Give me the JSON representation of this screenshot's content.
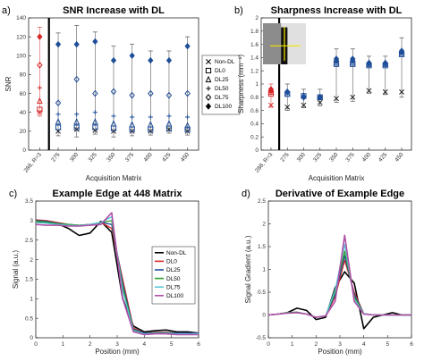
{
  "chart_data": [
    {
      "id": "a",
      "panel_label": "a)",
      "type": "scatter",
      "title": "SNR Increase with DL",
      "xlabel": "Acquisition Matrix",
      "ylabel": "SNR",
      "categories": [
        "288, R=3",
        "275",
        "300",
        "325",
        "350",
        "375",
        "400",
        "425",
        "450"
      ],
      "ylim": [
        0,
        140
      ],
      "yticks": [
        0,
        20,
        40,
        60,
        80,
        100,
        120,
        140
      ],
      "divider_after_index": 0,
      "legend": {
        "placement": "right",
        "entries": [
          "Non-DL",
          "DL0",
          "DL25",
          "DL50",
          "DL75",
          "DL100"
        ]
      },
      "series": [
        {
          "name": "Non-DL",
          "marker": "x",
          "values": [
            40,
            20,
            22,
            21,
            20,
            20,
            20,
            22,
            20
          ]
        },
        {
          "name": "DL0",
          "marker": "square",
          "values": [
            43,
            24,
            24,
            24,
            23,
            22,
            22,
            23,
            22
          ]
        },
        {
          "name": "DL25",
          "marker": "triangle",
          "values": [
            52,
            30,
            30,
            30,
            28,
            27,
            27,
            28,
            26
          ]
        },
        {
          "name": "DL50",
          "marker": "plus",
          "values": [
            66,
            38,
            38,
            40,
            36,
            35,
            35,
            36,
            35
          ]
        },
        {
          "name": "DL75",
          "marker": "diamond-open",
          "values": [
            90,
            50,
            75,
            60,
            62,
            58,
            60,
            58,
            60
          ]
        },
        {
          "name": "DL100",
          "marker": "diamond",
          "values": [
            120,
            112,
            112,
            115,
            95,
            100,
            95,
            95,
            110
          ]
        }
      ],
      "error": [
        10,
        12,
        20,
        10,
        15,
        12,
        10,
        10,
        10
      ],
      "colors": {
        "first_point": "#d62728",
        "rest": "#1f4e99"
      }
    },
    {
      "id": "b",
      "panel_label": "b)",
      "type": "scatter",
      "title": "Sharpness Increase with DL",
      "xlabel": "Acquisition Matrix",
      "ylabel": "Sharpness (mm⁻¹)",
      "categories": [
        "288, R=3",
        "275",
        "300",
        "325",
        "350",
        "375",
        "400",
        "425",
        "450"
      ],
      "ylim": [
        0,
        2
      ],
      "yticks": [
        0,
        0.2,
        0.4,
        0.6,
        0.8,
        1,
        1.2,
        1.4,
        1.6,
        1.8,
        2
      ],
      "divider_after_index": 0,
      "series": [
        {
          "name": "Non-DL",
          "values": [
            0.68,
            0.65,
            0.68,
            0.72,
            0.78,
            0.8,
            0.9,
            0.88,
            0.88
          ]
        },
        {
          "name": "DL0",
          "values": [
            0.85,
            0.85,
            0.82,
            0.8,
            1.3,
            1.3,
            1.28,
            1.28,
            1.45
          ]
        },
        {
          "name": "DL25",
          "values": [
            0.88,
            0.85,
            0.82,
            0.8,
            1.32,
            1.32,
            1.3,
            1.3,
            1.45
          ]
        },
        {
          "name": "DL50",
          "values": [
            0.9,
            0.87,
            0.82,
            0.8,
            1.35,
            1.35,
            1.32,
            1.32,
            1.48
          ]
        },
        {
          "name": "DL75",
          "values": [
            0.9,
            0.88,
            0.8,
            0.8,
            1.35,
            1.35,
            1.3,
            1.3,
            1.48
          ]
        },
        {
          "name": "DL100",
          "values": [
            0.92,
            0.88,
            0.8,
            0.8,
            1.38,
            1.38,
            1.32,
            1.32,
            1.5
          ]
        }
      ],
      "error": [
        0.08,
        0.12,
        0.1,
        0.12,
        0.15,
        0.15,
        0.1,
        0.1,
        0.2
      ],
      "inset": "image with yellow crosshair"
    },
    {
      "id": "c",
      "panel_label": "c)",
      "type": "line",
      "title": "Example Edge at 448 Matrix",
      "xlabel": "Position (mm)",
      "ylabel": "Signal (a.u.)",
      "xlim": [
        0,
        6
      ],
      "ylim": [
        0,
        3.5
      ],
      "xticks": [
        0,
        1,
        2,
        3,
        4,
        5,
        6
      ],
      "yticks": [
        0,
        0.5,
        1,
        1.5,
        2,
        2.5,
        3,
        3.5
      ],
      "legend": {
        "placement": "right",
        "entries": [
          "Non-DL",
          "DL0",
          "DL25",
          "DL50",
          "DL75",
          "DL100"
        ]
      },
      "x": [
        0,
        0.4,
        0.8,
        1.2,
        1.6,
        2.0,
        2.4,
        2.8,
        3.2,
        3.6,
        4.0,
        4.4,
        4.8,
        5.2,
        5.6,
        6.0
      ],
      "series": [
        {
          "name": "Non-DL",
          "color": "#000000",
          "values": [
            2.95,
            2.95,
            2.92,
            2.8,
            2.62,
            2.68,
            2.98,
            2.7,
            1.0,
            0.3,
            0.15,
            0.18,
            0.2,
            0.15,
            0.15,
            0.12
          ]
        },
        {
          "name": "DL0",
          "color": "#d62728",
          "values": [
            3.02,
            3.0,
            2.95,
            2.9,
            2.88,
            2.9,
            2.95,
            2.8,
            1.5,
            0.25,
            0.12,
            0.14,
            0.14,
            0.12,
            0.12,
            0.12
          ]
        },
        {
          "name": "DL25",
          "color": "#1f4e99",
          "values": [
            3.0,
            2.98,
            2.93,
            2.9,
            2.88,
            2.9,
            2.95,
            2.9,
            1.4,
            0.22,
            0.12,
            0.13,
            0.13,
            0.12,
            0.12,
            0.12
          ]
        },
        {
          "name": "DL50",
          "color": "#2ca02c",
          "values": [
            2.98,
            2.96,
            2.92,
            2.9,
            2.88,
            2.9,
            2.95,
            3.0,
            1.3,
            0.2,
            0.1,
            0.12,
            0.12,
            0.1,
            0.1,
            0.1
          ]
        },
        {
          "name": "DL75",
          "color": "#5bc8d8",
          "values": [
            2.95,
            2.93,
            2.9,
            2.88,
            2.87,
            2.9,
            2.95,
            3.1,
            1.2,
            0.18,
            0.1,
            0.11,
            0.11,
            0.1,
            0.1,
            0.1
          ]
        },
        {
          "name": "DL100",
          "color": "#b04fa8",
          "values": [
            2.9,
            2.88,
            2.88,
            2.86,
            2.86,
            2.88,
            2.9,
            3.2,
            1.0,
            0.15,
            0.08,
            0.1,
            0.1,
            0.08,
            0.08,
            0.08
          ]
        }
      ]
    },
    {
      "id": "d",
      "panel_label": "d)",
      "type": "line",
      "title": "Derivative of Example Edge",
      "xlabel": "Position (mm)",
      "ylabel": "Signal Gradient (a.u.)",
      "xlim": [
        0,
        6
      ],
      "ylim": [
        -0.5,
        2.5
      ],
      "xticks": [
        0,
        1,
        2,
        3,
        4,
        5,
        6
      ],
      "yticks": [
        -0.5,
        0,
        0.5,
        1,
        1.5,
        2,
        2.5
      ],
      "x": [
        0,
        0.4,
        0.8,
        1.2,
        1.6,
        2.0,
        2.4,
        2.8,
        3.2,
        3.6,
        4.0,
        4.4,
        4.8,
        5.2,
        5.6,
        6.0
      ],
      "series": [
        {
          "name": "Non-DL",
          "color": "#000000",
          "values": [
            0.0,
            0.02,
            0.05,
            0.15,
            0.1,
            -0.1,
            -0.05,
            0.6,
            0.95,
            0.7,
            -0.3,
            -0.05,
            0.0,
            0.05,
            0.0,
            0.0
          ]
        },
        {
          "name": "DL0",
          "color": "#d62728",
          "values": [
            0.0,
            0.02,
            0.05,
            0.06,
            0.02,
            -0.05,
            -0.02,
            0.4,
            1.2,
            0.5,
            0.03,
            0.0,
            0.0,
            0.0,
            0.0,
            0.0
          ]
        },
        {
          "name": "DL25",
          "color": "#1f4e99",
          "values": [
            0.0,
            0.02,
            0.05,
            0.06,
            0.02,
            -0.05,
            -0.02,
            0.45,
            1.3,
            0.45,
            0.03,
            0.0,
            0.0,
            0.0,
            0.0,
            0.0
          ]
        },
        {
          "name": "DL50",
          "color": "#2ca02c",
          "values": [
            0.0,
            0.02,
            0.05,
            0.06,
            0.02,
            -0.05,
            -0.02,
            0.5,
            1.4,
            0.4,
            0.03,
            0.0,
            0.0,
            0.0,
            0.0,
            0.0
          ]
        },
        {
          "name": "DL75",
          "color": "#5bc8d8",
          "values": [
            0.0,
            0.02,
            0.04,
            0.05,
            0.02,
            -0.05,
            -0.02,
            0.55,
            1.55,
            0.35,
            0.03,
            0.0,
            0.0,
            0.0,
            0.0,
            0.0
          ]
        },
        {
          "name": "DL100",
          "color": "#b04fa8",
          "values": [
            0.0,
            0.02,
            0.04,
            0.05,
            0.02,
            -0.05,
            -0.02,
            0.3,
            1.75,
            0.3,
            0.02,
            0.0,
            0.0,
            0.0,
            0.0,
            0.0
          ]
        }
      ]
    }
  ]
}
